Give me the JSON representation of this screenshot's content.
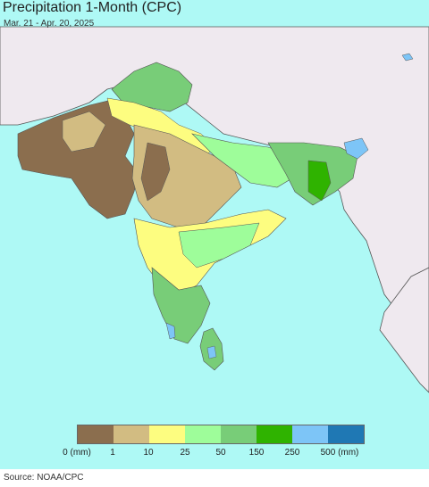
{
  "title": "Precipitation 1-Month (CPC)",
  "subtitle": "Mar. 21 - Apr. 20, 2025",
  "legend": {
    "swatches": [
      {
        "name": "0-1",
        "color": "#8b6e4e"
      },
      {
        "name": "1-10",
        "color": "#d2bc82"
      },
      {
        "name": "10-25",
        "color": "#fdfd80"
      },
      {
        "name": "25-50",
        "color": "#9efd9a"
      },
      {
        "name": "50-150",
        "color": "#78cd78"
      },
      {
        "name": "150-250",
        "color": "#2fb300"
      },
      {
        "name": "250-500",
        "color": "#7dc5f7"
      },
      {
        "name": "500+",
        "color": "#1f78b4"
      }
    ],
    "labels": [
      "0 (mm)",
      "1",
      "10",
      "25",
      "50",
      "150",
      "250",
      "500 (mm)"
    ]
  },
  "colors": {
    "ocean": "#aef9f5",
    "outside_land": "#efe9ef",
    "border": "#555555"
  },
  "source": "Source: NOAA/CPC"
}
